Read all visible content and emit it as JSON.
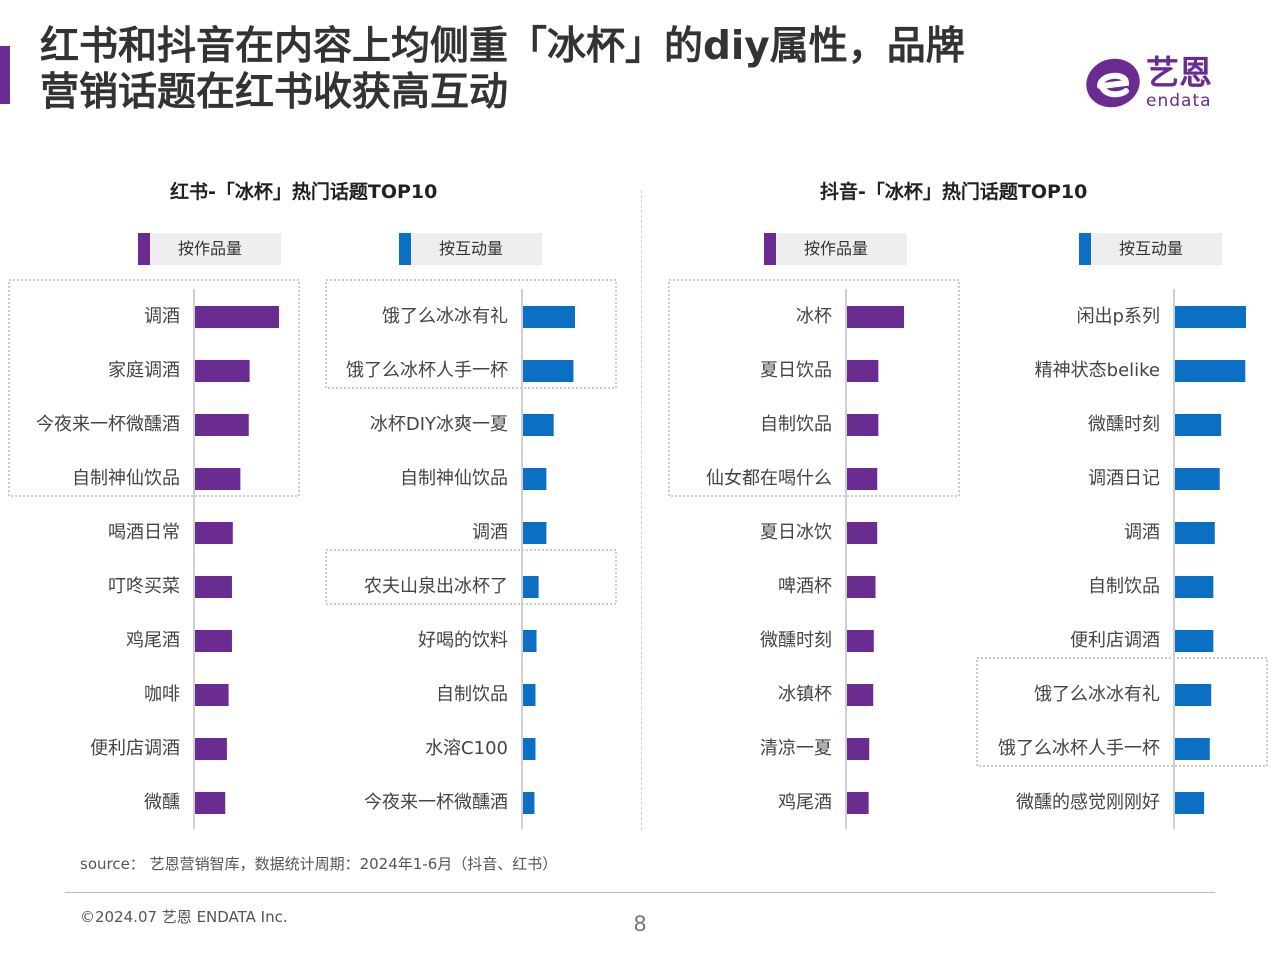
{
  "header": {
    "title_line1": "红书和抖音在内容上均侧重「冰杯」的diy属性，品牌",
    "title_line2": "营销话题在红书收获高互动"
  },
  "logo": {
    "cn": "艺恩",
    "en": "endata"
  },
  "colors": {
    "purple": "#6a2c91",
    "blue": "#0b6fc4"
  },
  "panels": {
    "xhs_title": "红书-「冰杯」热门话题TOP10",
    "douyin_title": "抖音-「冰杯」热门话题TOP10"
  },
  "legends": {
    "by_works": "按作品量",
    "by_interaction": "按互动量"
  },
  "chart_data": [
    {
      "type": "bar",
      "orientation": "horizontal",
      "platform": "红书",
      "metric": "按作品量",
      "color": "#6a2c91",
      "categories": [
        "调酒",
        "家庭调酒",
        "今夜来一杯微醺酒",
        "自制神仙饮品",
        "喝酒日常",
        "叮咚买菜",
        "鸡尾酒",
        "咖啡",
        "便利店调酒",
        "微醺"
      ],
      "values": [
        100,
        65,
        64,
        54,
        45,
        44,
        44,
        40,
        38,
        36
      ],
      "highlighted_rows": [
        0,
        1,
        2,
        3
      ]
    },
    {
      "type": "bar",
      "orientation": "horizontal",
      "platform": "红书",
      "metric": "按互动量",
      "color": "#0b6fc4",
      "categories": [
        "饿了么冰冰有礼",
        "饿了么冰杯人手一杯",
        "冰杯DIY冰爽一夏",
        "自制神仙饮品",
        "调酒",
        "农夫山泉出冰杯了",
        "好喝的饮料",
        "自制饮品",
        "水溶C100",
        "今夜来一杯微醺酒"
      ],
      "values": [
        100,
        97,
        59,
        45,
        45,
        30,
        26,
        24,
        24,
        22
      ],
      "highlighted_rows": [
        0,
        1,
        5
      ]
    },
    {
      "type": "bar",
      "orientation": "horizontal",
      "platform": "抖音",
      "metric": "按作品量",
      "color": "#6a2c91",
      "categories": [
        "冰杯",
        "夏日饮品",
        "自制饮品",
        "仙女都在喝什么",
        "夏日冰饮",
        "啤酒杯",
        "微醺时刻",
        "冰镇杯",
        "清凉一夏",
        "鸡尾酒"
      ],
      "values": [
        100,
        55,
        55,
        53,
        53,
        50,
        47,
        46,
        39,
        38
      ],
      "highlighted_rows": [
        0,
        1,
        2,
        3
      ]
    },
    {
      "type": "bar",
      "orientation": "horizontal",
      "platform": "抖音",
      "metric": "按互动量",
      "color": "#0b6fc4",
      "categories": [
        "闲出p系列",
        "精神状态belike",
        "微醺时刻",
        "调酒日记",
        "调酒",
        "自制饮品",
        "便利店调酒",
        "饿了么冰冰有礼",
        "饿了么冰杯人手一杯",
        "微醺的感觉刚刚好"
      ],
      "values": [
        100,
        99,
        65,
        63,
        56,
        54,
        54,
        51,
        49,
        41
      ],
      "highlighted_rows": [
        7,
        8
      ]
    }
  ],
  "footer": {
    "source": "source： 艺恩营销智库，数据统计周期：2024年1-6月（抖音、红书）",
    "copyright": "©2024.07 艺恩 ENDATA Inc.",
    "page_number": "8"
  }
}
